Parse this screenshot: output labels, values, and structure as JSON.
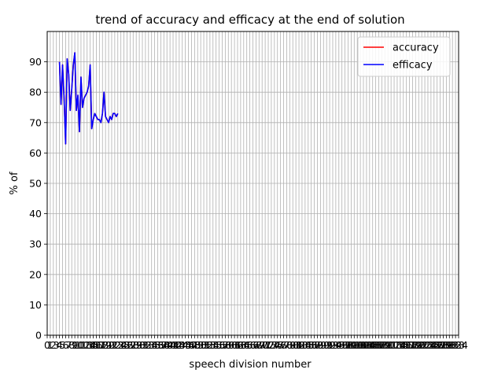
{
  "chart_data": {
    "type": "line",
    "title": "trend of accuracy and efficacy at the end of solution",
    "xlabel": "speech division number",
    "ylabel": "% of",
    "xlim": [
      0,
      134
    ],
    "ylim": [
      0,
      100
    ],
    "yticks": [
      0,
      10,
      20,
      30,
      40,
      50,
      60,
      70,
      80,
      90
    ],
    "xticks": [
      0,
      1,
      2,
      3,
      4,
      5,
      6,
      7,
      8,
      9,
      10,
      11,
      12,
      13,
      14,
      15,
      16,
      17,
      18,
      19,
      20,
      21,
      22,
      23,
      24,
      25,
      26,
      27,
      28,
      29,
      30,
      31,
      32,
      33,
      34,
      35,
      36,
      37,
      38,
      39,
      40,
      41,
      42,
      43,
      44,
      45,
      46,
      47,
      48,
      49,
      50,
      51,
      52,
      53,
      54,
      55,
      56,
      57,
      58,
      59,
      60,
      61,
      62,
      63,
      64,
      65,
      66,
      67,
      68,
      69,
      70,
      71,
      72,
      73,
      74,
      75,
      76,
      77,
      78,
      79,
      80,
      81,
      82,
      83,
      84,
      85,
      86,
      87,
      88,
      89,
      90,
      91,
      92,
      93,
      94,
      95,
      96,
      97,
      98,
      99,
      100,
      101,
      102,
      103,
      104,
      105,
      106,
      107,
      108,
      109,
      110,
      111,
      112,
      113,
      114,
      115,
      116,
      117,
      118,
      119,
      120,
      121,
      122,
      123,
      124,
      125,
      126,
      127,
      128,
      129,
      130,
      131,
      132,
      133,
      134
    ],
    "grid": true,
    "legend_position": "top-right",
    "series": [
      {
        "name": "accuracy",
        "color": "#ff0000",
        "x": [
          4,
          4.5,
          5,
          5.5,
          6,
          6.5,
          7,
          7.5,
          8,
          8.5,
          9,
          9.5,
          10,
          10.5,
          11,
          11.5,
          12,
          12.5,
          13,
          13.5,
          14,
          14.5,
          15,
          15.5,
          16,
          16.5,
          17,
          17.5,
          18,
          18.5,
          19,
          19.5,
          20,
          20.5,
          21,
          21.5,
          22,
          22.5,
          23
        ],
        "y": [
          90,
          76,
          89,
          78,
          63,
          91,
          86,
          74,
          81,
          89,
          93,
          74,
          79,
          67,
          85,
          75,
          78,
          79,
          80,
          82,
          89,
          68,
          71,
          73,
          72,
          71,
          71,
          70,
          73,
          80,
          72,
          71,
          70,
          72,
          71,
          73,
          73,
          72,
          73
        ]
      },
      {
        "name": "efficacy",
        "color": "#0000ff",
        "x": [
          4,
          4.5,
          5,
          5.5,
          6,
          6.5,
          7,
          7.5,
          8,
          8.5,
          9,
          9.5,
          10,
          10.5,
          11,
          11.5,
          12,
          12.5,
          13,
          13.5,
          14,
          14.5,
          15,
          15.5,
          16,
          16.5,
          17,
          17.5,
          18,
          18.5,
          19,
          19.5,
          20,
          20.5,
          21,
          21.5,
          22,
          22.5,
          23
        ],
        "y": [
          90,
          76,
          89,
          78,
          63,
          91,
          86,
          74,
          81,
          89,
          93,
          74,
          79,
          67,
          85,
          75,
          78,
          79,
          80,
          82,
          89,
          68,
          71,
          73,
          72,
          71,
          71,
          70,
          73,
          80,
          72,
          71,
          70,
          72,
          71,
          73,
          73,
          72,
          73
        ]
      }
    ]
  }
}
